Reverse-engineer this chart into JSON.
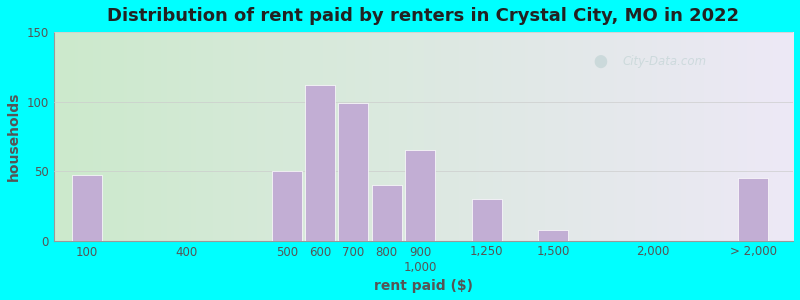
{
  "title": "Distribution of rent paid by renters in Crystal City, MO in 2022",
  "xlabel": "rent paid ($)",
  "ylabel": "households",
  "background_outer": "#00FFFF",
  "bar_color": "#c2aed4",
  "ylim": [
    0,
    150
  ],
  "yticks": [
    0,
    50,
    100,
    150
  ],
  "tick_labels": [
    "100",
    "400",
    "500",
    "600",
    "700",
    "800",
    "900\n1,000",
    "1,250",
    "1,500",
    "2,000",
    "> 2,000"
  ],
  "values": [
    47,
    0,
    50,
    112,
    99,
    40,
    65,
    30,
    8,
    0,
    45
  ],
  "x_positions": [
    0,
    3,
    6,
    7,
    8,
    9,
    10,
    12,
    14,
    17,
    20
  ],
  "bar_width": 0.9,
  "title_fontsize": 13,
  "axis_label_fontsize": 10,
  "tick_fontsize": 8.5,
  "watermark_text": "City-Data.com",
  "watermark_color": "#b8cece",
  "watermark_alpha": 0.55,
  "grid_color": "#cccccc",
  "tick_color": "#555555",
  "xlabel_color": "#555555",
  "ylabel_color": "#555555",
  "title_color": "#222222"
}
